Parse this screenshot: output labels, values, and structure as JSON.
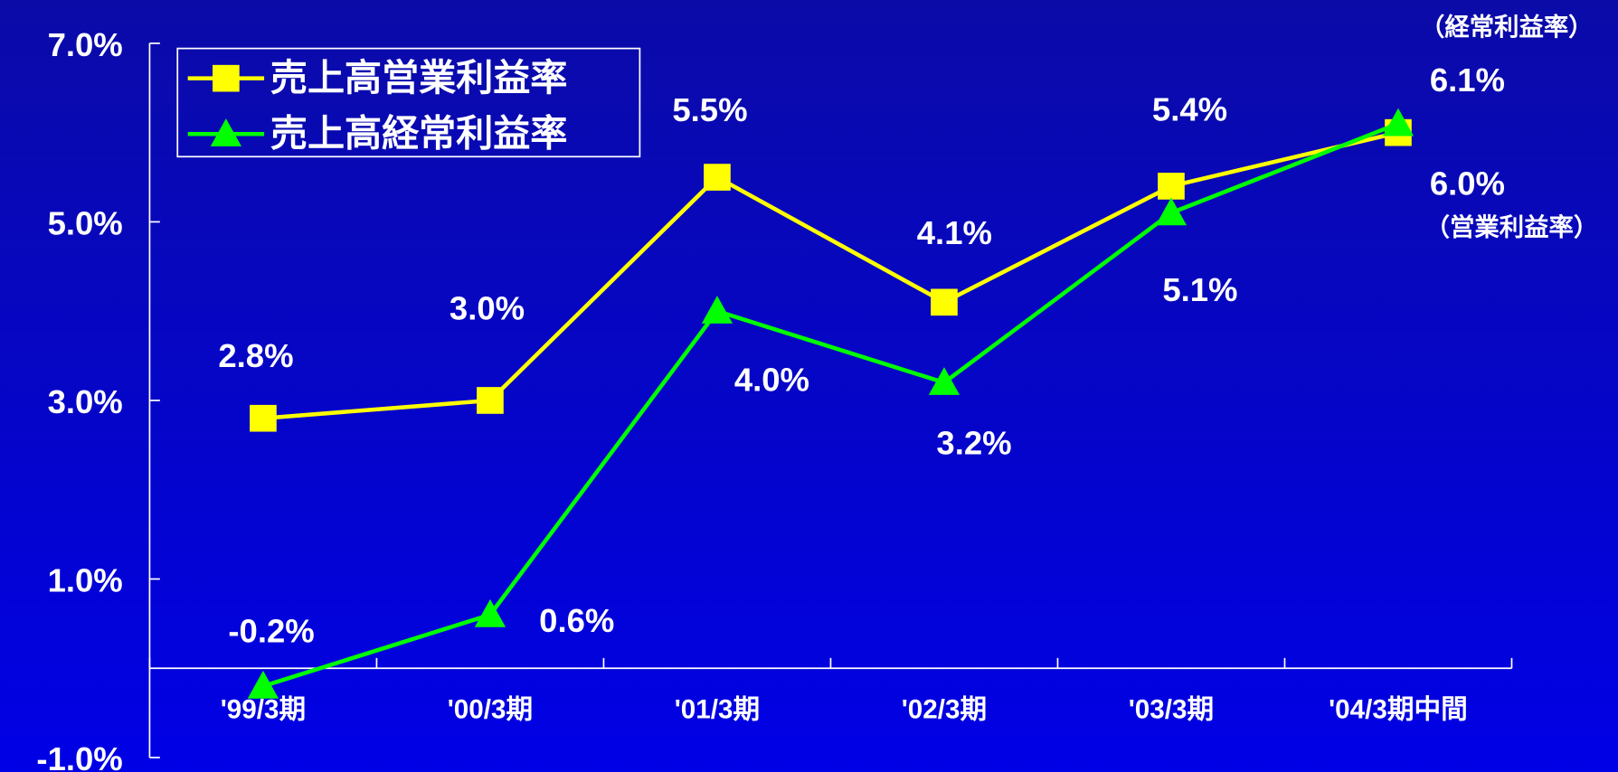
{
  "chart_data": {
    "type": "line",
    "categories": [
      "'99/3期",
      "'00/3期",
      "'01/3期",
      "'02/3期",
      "'03/3期",
      "'04/3期中間"
    ],
    "series": [
      {
        "name": "売上高営業利益率",
        "color": "#ffff00",
        "marker": "square",
        "values": [
          2.8,
          3.0,
          5.5,
          4.1,
          5.4,
          6.0
        ],
        "value_labels": [
          "2.8%",
          "3.0%",
          "5.5%",
          "4.1%",
          "5.4%",
          "6.0%"
        ]
      },
      {
        "name": "売上高経常利益率",
        "color": "#00ff00",
        "marker": "triangle",
        "values": [
          -0.2,
          0.6,
          4.0,
          3.2,
          5.1,
          6.1
        ],
        "value_labels": [
          "-0.2%",
          "0.6%",
          "4.0%",
          "3.2%",
          "5.1%",
          "6.1%"
        ]
      }
    ],
    "annotations": [
      "（経常利益率）",
      "（営業利益率）"
    ],
    "ylim": [
      -1,
      7
    ],
    "yticks": [
      {
        "value": -1,
        "label": "-1.0%"
      },
      {
        "value": 1,
        "label": "1.0%"
      },
      {
        "value": 3,
        "label": "3.0%"
      },
      {
        "value": 5,
        "label": "5.0%"
      },
      {
        "value": 7,
        "label": "7.0%"
      }
    ],
    "legend": "upper left"
  }
}
